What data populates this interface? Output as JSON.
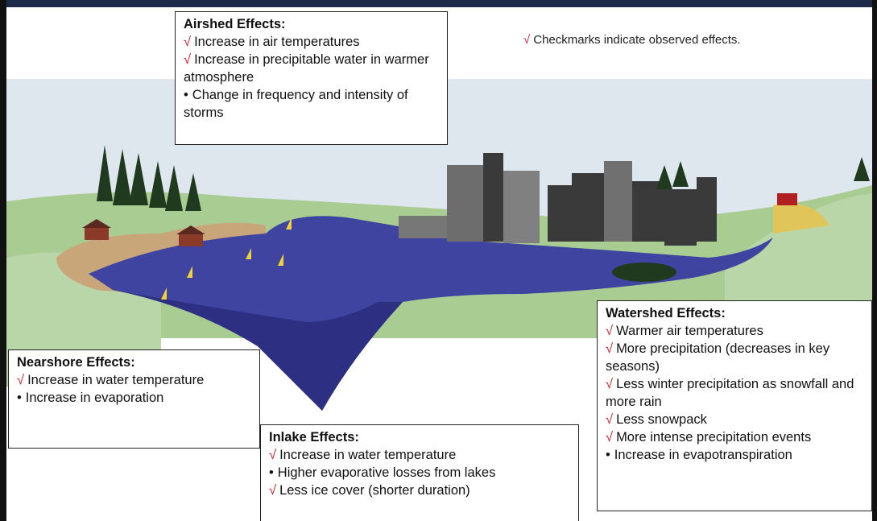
{
  "note": {
    "mark": "√",
    "text": "Checkmarks indicate observed effects."
  },
  "boxes": [
    {
      "title": "Airshed Effects:",
      "items": [
        {
          "mark": "√",
          "text": "Increase in air temperatures"
        },
        {
          "mark": "√",
          "text": "Increase in precipitable water in warmer atmosphere"
        },
        {
          "mark": "•",
          "text": "Change in frequency and intensity of storms"
        }
      ]
    },
    {
      "title": "Nearshore Effects:",
      "items": [
        {
          "mark": "√",
          "text": "Increase in water temperature"
        },
        {
          "mark": "•",
          "text": "Increase in evaporation"
        }
      ]
    },
    {
      "title": "Inlake Effects:",
      "items": [
        {
          "mark": "√",
          "text": "Increase in water temperature"
        },
        {
          "mark": "•",
          "text": "Higher evaporative losses from lakes"
        },
        {
          "mark": "√",
          "text": "Less ice cover (shorter duration)"
        }
      ]
    },
    {
      "title": "Watershed Effects:",
      "items": [
        {
          "mark": "√",
          "text": "Warmer air temperatures"
        },
        {
          "mark": "√",
          "text": "More precipitation (decreases in key seasons)"
        },
        {
          "mark": "√",
          "text": "Less winter precipitation as snowfall and more rain"
        },
        {
          "mark": "√",
          "text": "Less snowpack"
        },
        {
          "mark": "√",
          "text": "More intense precipitation events"
        },
        {
          "mark": "•",
          "text": "Increase in evapotranspiration"
        }
      ]
    }
  ]
}
